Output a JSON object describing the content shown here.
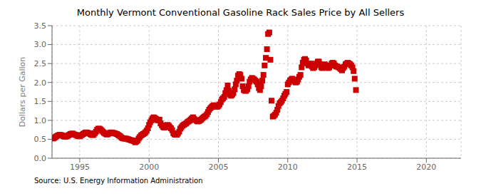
{
  "chart_data": {
    "type": "scatter",
    "title": "Monthly Vermont Conventional Gasoline Rack Sales Price by All Sellers",
    "y_label": "Dollars per Gallon",
    "annotations": [
      "Source: U.S. Energy Information Administration"
    ],
    "color": "#cc0000",
    "marker": "square",
    "grid": true,
    "xlim": [
      1993.0,
      2022.5
    ],
    "ylim": [
      0.0,
      3.5
    ],
    "xticks": [
      1995,
      2000,
      2005,
      2010,
      2015,
      2020
    ],
    "yticks": [
      {
        "value": 0.0,
        "label": "0.0"
      },
      0.5,
      {
        "value": 1.0,
        "label": "1.0"
      },
      1.5,
      {
        "value": 2.0,
        "label": "2.0"
      },
      2.5,
      {
        "value": 3.0,
        "label": "3.0"
      },
      3.5
    ],
    "x": [
      1993.08,
      1993.17,
      1993.25,
      1993.33,
      1993.42,
      1993.5,
      1993.58,
      1993.67,
      1993.75,
      1993.83,
      1993.92,
      1994.0,
      1994.08,
      1994.17,
      1994.25,
      1994.33,
      1994.42,
      1994.5,
      1994.58,
      1994.67,
      1994.75,
      1994.83,
      1994.92,
      1995.0,
      1995.08,
      1995.17,
      1995.25,
      1995.33,
      1995.42,
      1995.5,
      1995.58,
      1995.67,
      1995.75,
      1995.83,
      1995.92,
      1996.0,
      1996.08,
      1996.17,
      1996.25,
      1996.33,
      1996.42,
      1996.5,
      1996.58,
      1996.67,
      1996.75,
      1996.83,
      1996.92,
      1997.0,
      1997.08,
      1997.17,
      1997.25,
      1997.33,
      1997.42,
      1997.5,
      1997.58,
      1997.67,
      1997.75,
      1997.83,
      1997.92,
      1998.0,
      1998.08,
      1998.17,
      1998.25,
      1998.33,
      1998.42,
      1998.5,
      1998.58,
      1998.67,
      1998.75,
      1998.83,
      1998.92,
      1999.0,
      1999.08,
      1999.17,
      1999.25,
      1999.33,
      1999.42,
      1999.5,
      1999.58,
      1999.67,
      1999.75,
      1999.83,
      1999.92,
      2000.0,
      2000.08,
      2000.17,
      2000.25,
      2000.33,
      2000.42,
      2000.5,
      2000.58,
      2000.67,
      2000.75,
      2000.83,
      2000.92,
      2001.0,
      2001.08,
      2001.17,
      2001.25,
      2001.33,
      2001.42,
      2001.5,
      2001.58,
      2001.67,
      2001.75,
      2001.83,
      2001.92,
      2002.0,
      2002.08,
      2002.17,
      2002.25,
      2002.33,
      2002.42,
      2002.5,
      2002.58,
      2002.67,
      2002.75,
      2002.83,
      2002.92,
      2003.0,
      2003.08,
      2003.17,
      2003.25,
      2003.33,
      2003.42,
      2003.5,
      2003.58,
      2003.67,
      2003.75,
      2003.83,
      2003.92,
      2004.0,
      2004.08,
      2004.17,
      2004.25,
      2004.33,
      2004.42,
      2004.5,
      2004.58,
      2004.67,
      2004.75,
      2004.83,
      2004.92,
      2005.0,
      2005.08,
      2005.17,
      2005.25,
      2005.33,
      2005.42,
      2005.5,
      2005.58,
      2005.67,
      2005.75,
      2005.83,
      2005.92,
      2006.0,
      2006.08,
      2006.17,
      2006.25,
      2006.33,
      2006.42,
      2006.5,
      2006.58,
      2006.67,
      2006.75,
      2006.83,
      2006.92,
      2007.0,
      2007.08,
      2007.17,
      2007.25,
      2007.33,
      2007.42,
      2007.5,
      2007.58,
      2007.67,
      2007.75,
      2007.83,
      2007.92,
      2008.0,
      2008.08,
      2008.17,
      2008.25,
      2008.33,
      2008.42,
      2008.5,
      2008.58,
      2008.67,
      2008.75,
      2008.83,
      2008.92,
      2009.0,
      2009.08,
      2009.17,
      2009.25,
      2009.33,
      2009.42,
      2009.5,
      2009.58,
      2009.67,
      2009.75,
      2009.83,
      2009.92,
      2010.0,
      2010.08,
      2010.17,
      2010.25,
      2010.33,
      2010.42,
      2010.5,
      2010.58,
      2010.67,
      2010.75,
      2010.83,
      2010.92,
      2011.0,
      2011.08,
      2011.17,
      2011.25,
      2011.33,
      2011.42,
      2011.5,
      2011.58,
      2011.67,
      2011.75,
      2011.83,
      2011.92,
      2012.0,
      2012.08,
      2012.17,
      2012.25,
      2012.33,
      2012.42,
      2012.5,
      2012.58,
      2012.67,
      2012.75,
      2012.83,
      2012.92,
      2013.0,
      2013.08,
      2013.17,
      2013.25,
      2013.33,
      2013.42,
      2013.5,
      2013.58,
      2013.67,
      2013.75,
      2013.83,
      2013.92,
      2014.0,
      2014.08,
      2014.17,
      2014.25,
      2014.33,
      2014.42,
      2014.5,
      2014.58,
      2014.67,
      2014.75,
      2014.83,
      2014.92
    ],
    "values": [
      0.52,
      0.54,
      0.56,
      0.58,
      0.6,
      0.61,
      0.62,
      0.61,
      0.6,
      0.58,
      0.57,
      0.57,
      0.58,
      0.6,
      0.62,
      0.64,
      0.65,
      0.65,
      0.63,
      0.62,
      0.61,
      0.59,
      0.58,
      0.58,
      0.6,
      0.62,
      0.64,
      0.66,
      0.68,
      0.68,
      0.67,
      0.66,
      0.64,
      0.62,
      0.61,
      0.62,
      0.66,
      0.7,
      0.75,
      0.78,
      0.78,
      0.76,
      0.73,
      0.7,
      0.67,
      0.65,
      0.63,
      0.63,
      0.65,
      0.67,
      0.68,
      0.68,
      0.67,
      0.66,
      0.65,
      0.64,
      0.62,
      0.6,
      0.58,
      0.55,
      0.53,
      0.52,
      0.52,
      0.52,
      0.51,
      0.5,
      0.49,
      0.48,
      0.47,
      0.46,
      0.45,
      0.42,
      0.44,
      0.47,
      0.52,
      0.56,
      0.6,
      0.62,
      0.64,
      0.66,
      0.69,
      0.73,
      0.79,
      0.88,
      0.95,
      1.0,
      1.05,
      1.08,
      1.06,
      1.04,
      1.01,
      1.0,
      1.02,
      0.92,
      0.87,
      0.83,
      0.81,
      0.82,
      0.85,
      0.88,
      0.86,
      0.82,
      0.79,
      0.74,
      0.66,
      0.63,
      0.62,
      0.62,
      0.65,
      0.7,
      0.78,
      0.82,
      0.86,
      0.88,
      0.9,
      0.92,
      0.95,
      0.97,
      0.99,
      1.02,
      1.05,
      1.08,
      1.04,
      1.01,
      0.99,
      0.97,
      0.98,
      1.0,
      1.02,
      1.05,
      1.08,
      1.1,
      1.12,
      1.16,
      1.22,
      1.28,
      1.32,
      1.35,
      1.38,
      1.4,
      1.38,
      1.36,
      1.36,
      1.38,
      1.42,
      1.48,
      1.55,
      1.58,
      1.62,
      1.72,
      1.8,
      1.92,
      1.78,
      1.68,
      1.65,
      1.68,
      1.72,
      1.82,
      1.95,
      2.05,
      2.18,
      2.22,
      2.2,
      2.1,
      1.9,
      1.8,
      1.78,
      1.78,
      1.82,
      1.9,
      2.02,
      2.08,
      2.12,
      2.1,
      2.08,
      2.05,
      2.02,
      1.95,
      1.85,
      1.8,
      1.9,
      2.05,
      2.2,
      2.45,
      2.65,
      2.88,
      3.28,
      3.32,
      2.6,
      1.52,
      1.1,
      1.12,
      1.15,
      1.2,
      1.28,
      1.38,
      1.45,
      1.48,
      1.52,
      1.58,
      1.65,
      1.7,
      1.75,
      1.95,
      2.0,
      2.05,
      2.08,
      2.1,
      2.06,
      2.02,
      2.0,
      2.02,
      2.08,
      2.15,
      2.2,
      2.4,
      2.52,
      2.6,
      2.62,
      2.58,
      2.5,
      2.45,
      2.48,
      2.5,
      2.42,
      2.38,
      2.4,
      2.45,
      2.5,
      2.55,
      2.55,
      2.48,
      2.4,
      2.38,
      2.42,
      2.48,
      2.45,
      2.4,
      2.38,
      2.4,
      2.45,
      2.5,
      2.52,
      2.5,
      2.45,
      2.42,
      2.42,
      2.4,
      2.38,
      2.35,
      2.32,
      2.38,
      2.42,
      2.48,
      2.5,
      2.52,
      2.5,
      2.48,
      2.45,
      2.4,
      2.3,
      2.1,
      1.8
    ]
  }
}
